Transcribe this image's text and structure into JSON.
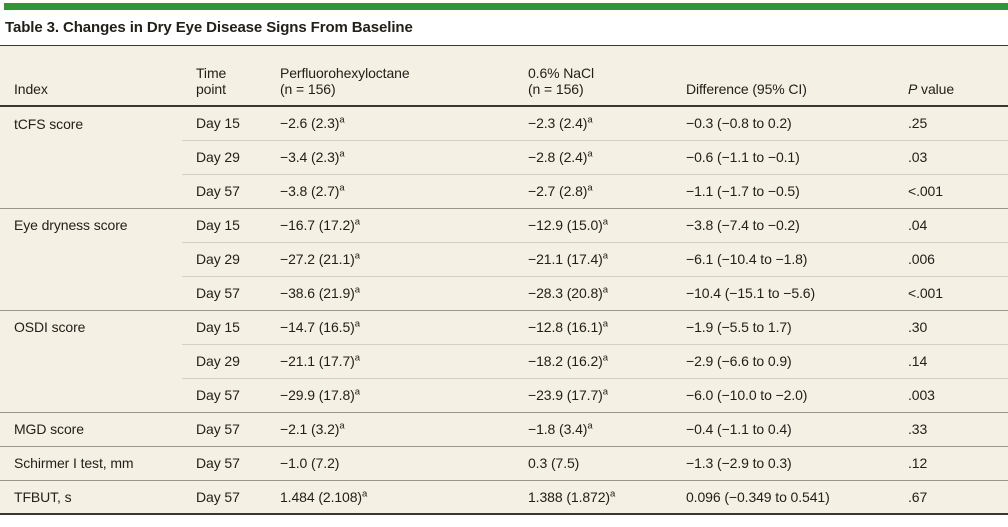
{
  "title": "Table 3. Changes in Dry Eye Disease Signs From Baseline",
  "colors": {
    "accent_green": "#2d9638",
    "table_background": "#f4f1e4",
    "rule_dark": "#3a372e",
    "rule_group": "#98958a",
    "rule_inner": "#d3d0c2",
    "text": "#232019"
  },
  "table": {
    "columns": [
      {
        "line1": "Index"
      },
      {
        "line1": "Time",
        "line2": "point"
      },
      {
        "line1": "Perfluorohexyloctane",
        "line2": "(n = 156)"
      },
      {
        "line1": "0.6% NaCl",
        "line2": "(n = 156)"
      },
      {
        "line1": "Difference (95% CI)"
      },
      {
        "italic": "P",
        "rest": " value"
      }
    ],
    "rows": [
      {
        "index": "tCFS score",
        "time": "Day 15",
        "drug": "−2.6 (2.3)",
        "drug_sup": "a",
        "nacl": "−2.3 (2.4)",
        "nacl_sup": "a",
        "diff": "−0.3 (−0.8 to 0.2)",
        "p": ".25",
        "group_start": true
      },
      {
        "index": "",
        "time": "Day 29",
        "drug": "−3.4 (2.3)",
        "drug_sup": "a",
        "nacl": "−2.8 (2.4)",
        "nacl_sup": "a",
        "diff": "−0.6 (−1.1 to −0.1)",
        "p": ".03",
        "group_start": false
      },
      {
        "index": "",
        "time": "Day 57",
        "drug": "−3.8 (2.7)",
        "drug_sup": "a",
        "nacl": "−2.7 (2.8)",
        "nacl_sup": "a",
        "diff": "−1.1 (−1.7 to −0.5)",
        "p": "<.001",
        "group_start": false
      },
      {
        "index": "Eye dryness score",
        "time": "Day 15",
        "drug": "−16.7 (17.2)",
        "drug_sup": "a",
        "nacl": "−12.9 (15.0)",
        "nacl_sup": "a",
        "diff": "−3.8 (−7.4 to −0.2)",
        "p": ".04",
        "group_start": true
      },
      {
        "index": "",
        "time": "Day 29",
        "drug": "−27.2 (21.1)",
        "drug_sup": "a",
        "nacl": "−21.1 (17.4)",
        "nacl_sup": "a",
        "diff": "−6.1 (−10.4 to −1.8)",
        "p": ".006",
        "group_start": false
      },
      {
        "index": "",
        "time": "Day 57",
        "drug": "−38.6 (21.9)",
        "drug_sup": "a",
        "nacl": "−28.3 (20.8)",
        "nacl_sup": "a",
        "diff": "−10.4 (−15.1 to −5.6)",
        "p": "<.001",
        "group_start": false
      },
      {
        "index": "OSDI score",
        "time": "Day 15",
        "drug": "−14.7 (16.5)",
        "drug_sup": "a",
        "nacl": "−12.8 (16.1)",
        "nacl_sup": "a",
        "diff": "−1.9 (−5.5 to 1.7)",
        "p": ".30",
        "group_start": true
      },
      {
        "index": "",
        "time": "Day 29",
        "drug": "−21.1 (17.7)",
        "drug_sup": "a",
        "nacl": "−18.2 (16.2)",
        "nacl_sup": "a",
        "diff": "−2.9 (−6.6 to 0.9)",
        "p": ".14",
        "group_start": false
      },
      {
        "index": "",
        "time": "Day 57",
        "drug": "−29.9 (17.8)",
        "drug_sup": "a",
        "nacl": "−23.9 (17.7)",
        "nacl_sup": "a",
        "diff": "−6.0 (−10.0 to −2.0)",
        "p": ".003",
        "group_start": false
      },
      {
        "index": "MGD score",
        "time": "Day 57",
        "drug": "−2.1 (3.2)",
        "drug_sup": "a",
        "nacl": "−1.8 (3.4)",
        "nacl_sup": "a",
        "diff": "−0.4 (−1.1 to 0.4)",
        "p": ".33",
        "group_start": true
      },
      {
        "index": "Schirmer I test, mm",
        "time": "Day 57",
        "drug": "−1.0 (7.2)",
        "nacl": "0.3 (7.5)",
        "diff": "−1.3 (−2.9 to 0.3)",
        "p": ".12",
        "group_start": true
      },
      {
        "index": "TFBUT, s",
        "time": "Day 57",
        "drug": "1.484 (2.108)",
        "drug_sup": "a",
        "nacl": "1.388 (1.872)",
        "nacl_sup": "a",
        "diff": "0.096 (−0.349 to 0.541)",
        "p": ".67",
        "group_start": true
      }
    ]
  }
}
